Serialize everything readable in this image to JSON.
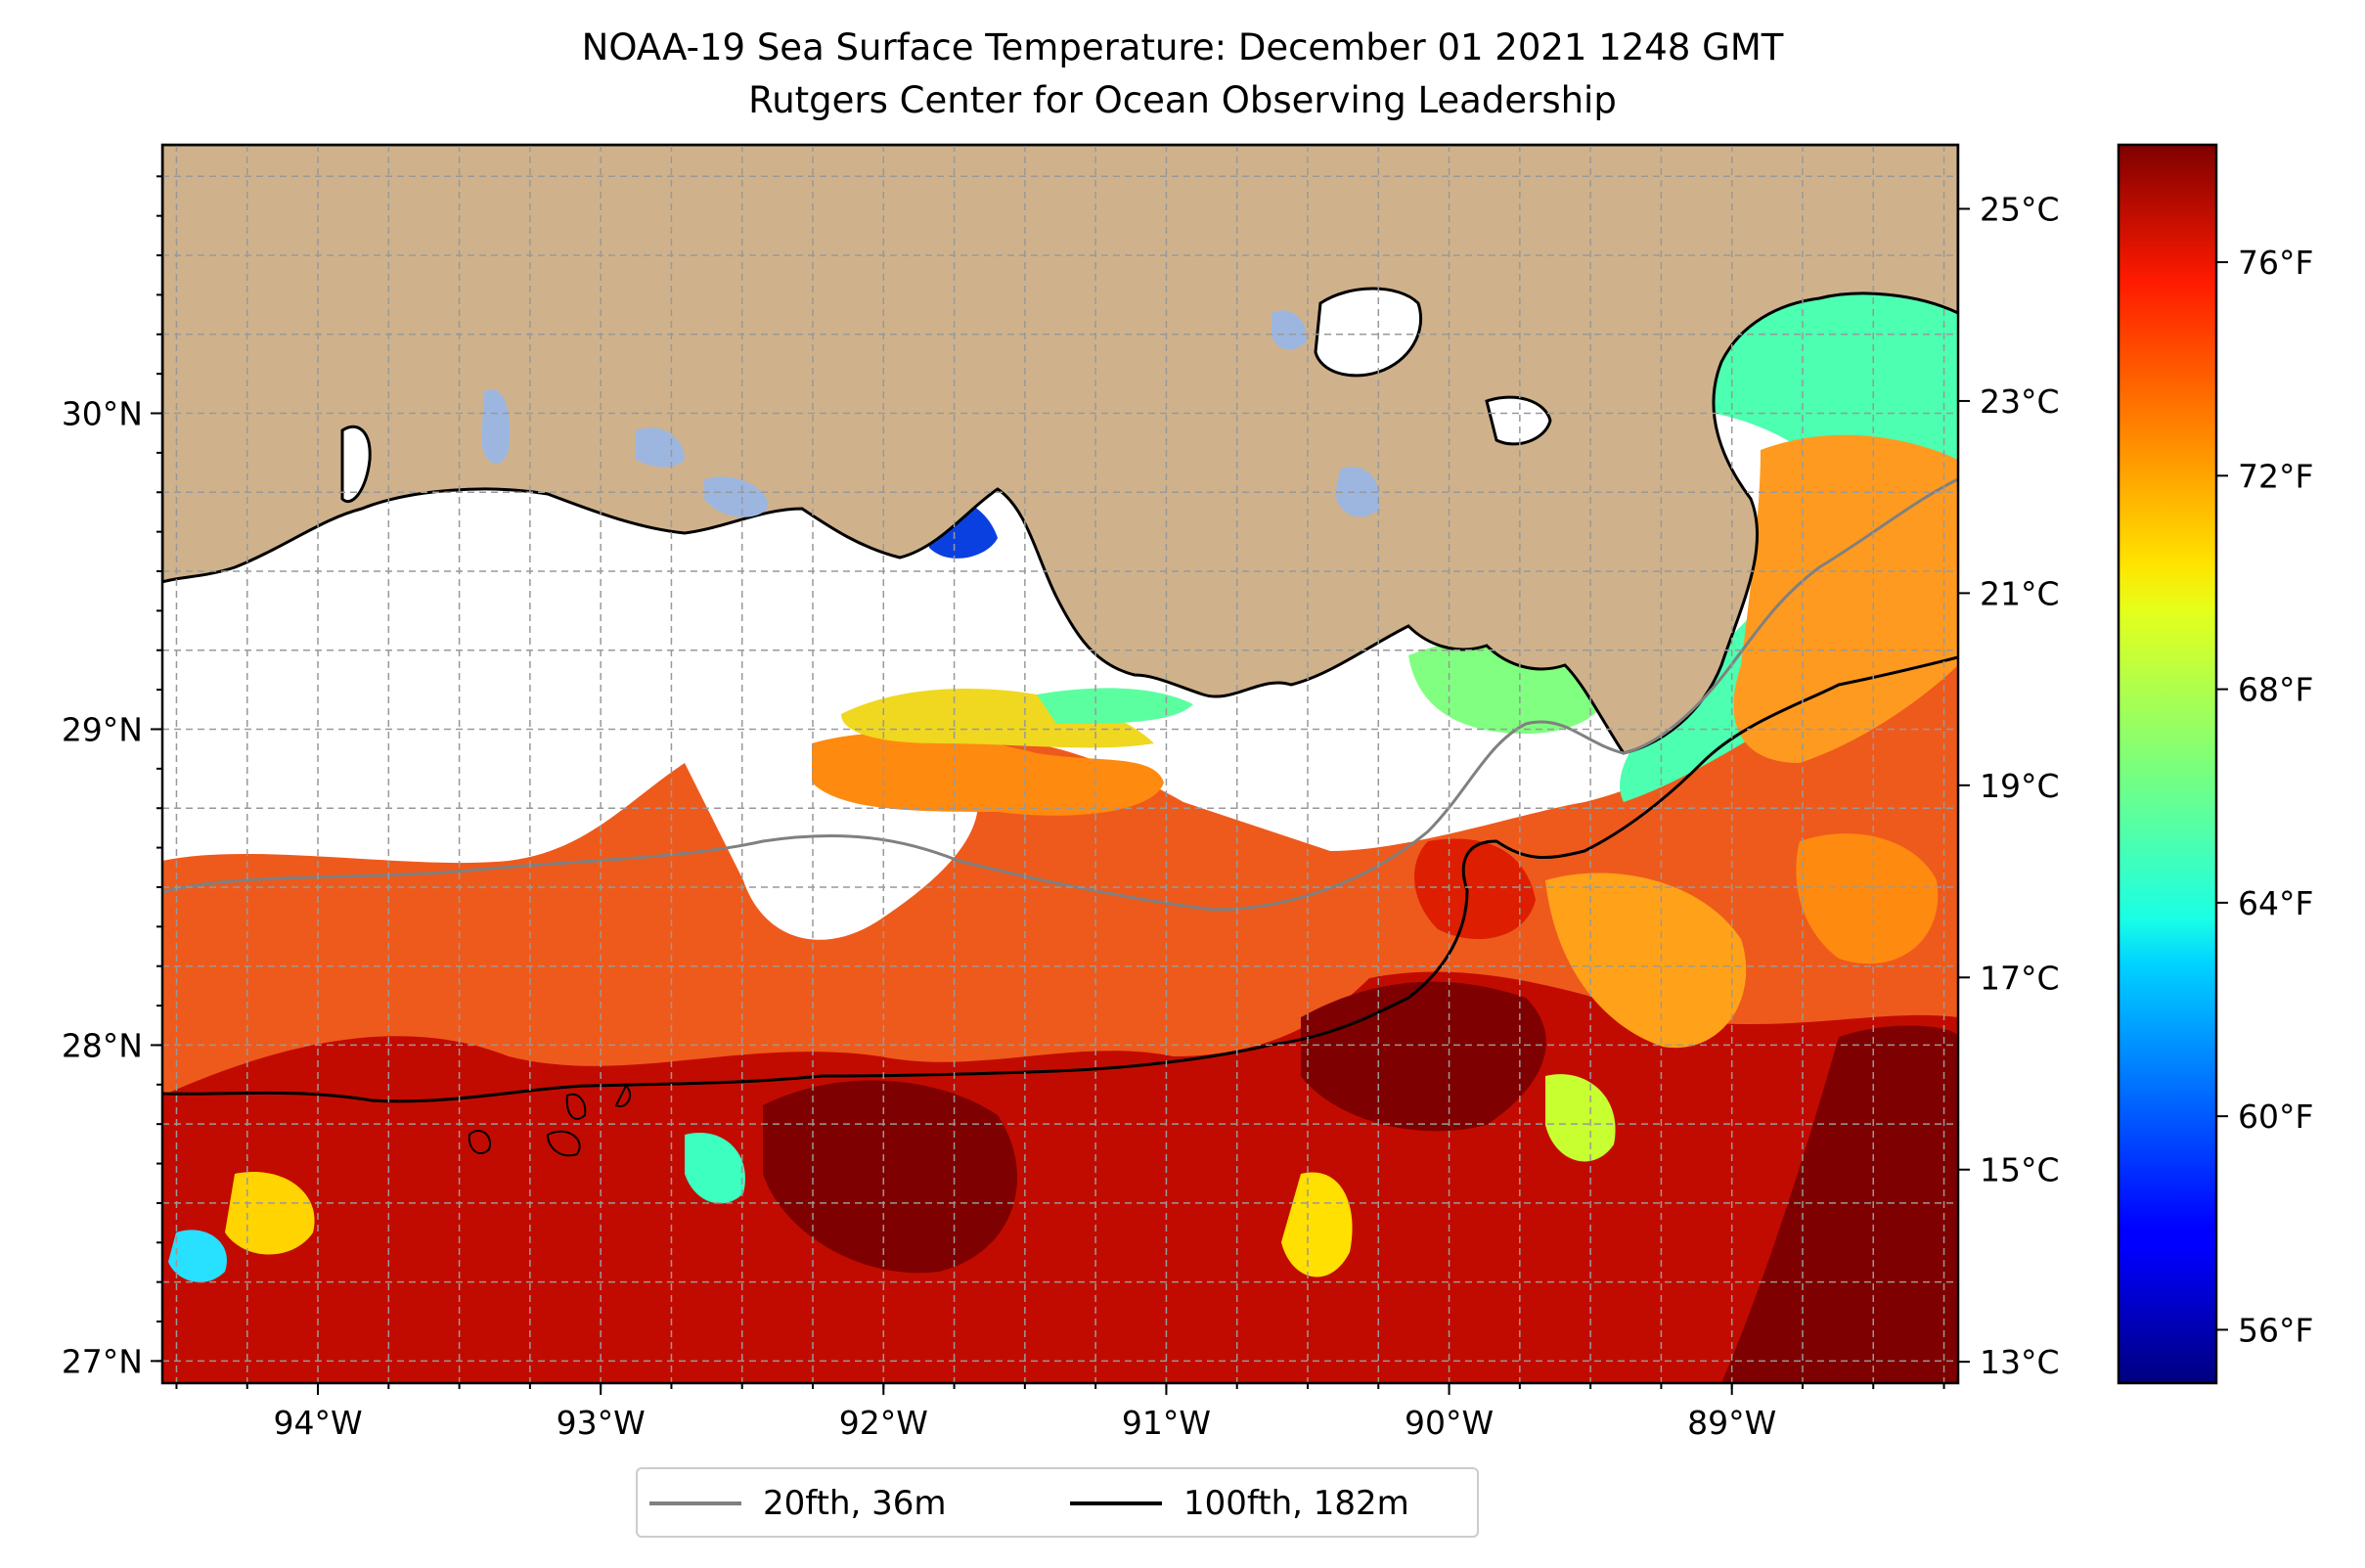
{
  "title": {
    "line1": "NOAA-19 Sea Surface Temperature: December 01 2021 1248 GMT",
    "line2": "Rutgers Center for Ocean Observing Leadership"
  },
  "map": {
    "lon_range": [
      -94.55,
      -88.2
    ],
    "lat_range": [
      26.93,
      30.85
    ],
    "lon_ticks": [
      {
        "value": -94,
        "label": "94°W"
      },
      {
        "value": -93,
        "label": "93°W"
      },
      {
        "value": -92,
        "label": "92°W"
      },
      {
        "value": -91,
        "label": "91°W"
      },
      {
        "value": -90,
        "label": "90°W"
      },
      {
        "value": -89,
        "label": "89°W"
      }
    ],
    "lat_ticks": [
      {
        "value": 27,
        "label": "27°N"
      },
      {
        "value": 28,
        "label": "28°N"
      },
      {
        "value": 29,
        "label": "29°N"
      },
      {
        "value": 30,
        "label": "30°N"
      }
    ],
    "grid": "dashed gray, every 0.25°",
    "land_color": "#cfb28b",
    "inland_water_color": "#9db6e0",
    "no_data_color": "#ffffff"
  },
  "colorbar": {
    "colormap": "jet",
    "celsius_ticks": [
      {
        "value": 13,
        "label": "13°C"
      },
      {
        "value": 15,
        "label": "15°C"
      },
      {
        "value": 17,
        "label": "17°C"
      },
      {
        "value": 19,
        "label": "19°C"
      },
      {
        "value": 21,
        "label": "21°C"
      },
      {
        "value": 23,
        "label": "23°C"
      },
      {
        "value": 25,
        "label": "25°C"
      }
    ],
    "fahrenheit_ticks": [
      {
        "value": 56,
        "label": "56°F"
      },
      {
        "value": 60,
        "label": "60°F"
      },
      {
        "value": 64,
        "label": "64°F"
      },
      {
        "value": 68,
        "label": "68°F"
      },
      {
        "value": 72,
        "label": "72°F"
      },
      {
        "value": 76,
        "label": "76°F"
      }
    ],
    "range_f": [
      55.0,
      78.2
    ]
  },
  "legend": {
    "items": [
      {
        "label": "20fth, 36m",
        "color": "#808080"
      },
      {
        "label": "100fth, 182m",
        "color": "#000000"
      }
    ]
  }
}
